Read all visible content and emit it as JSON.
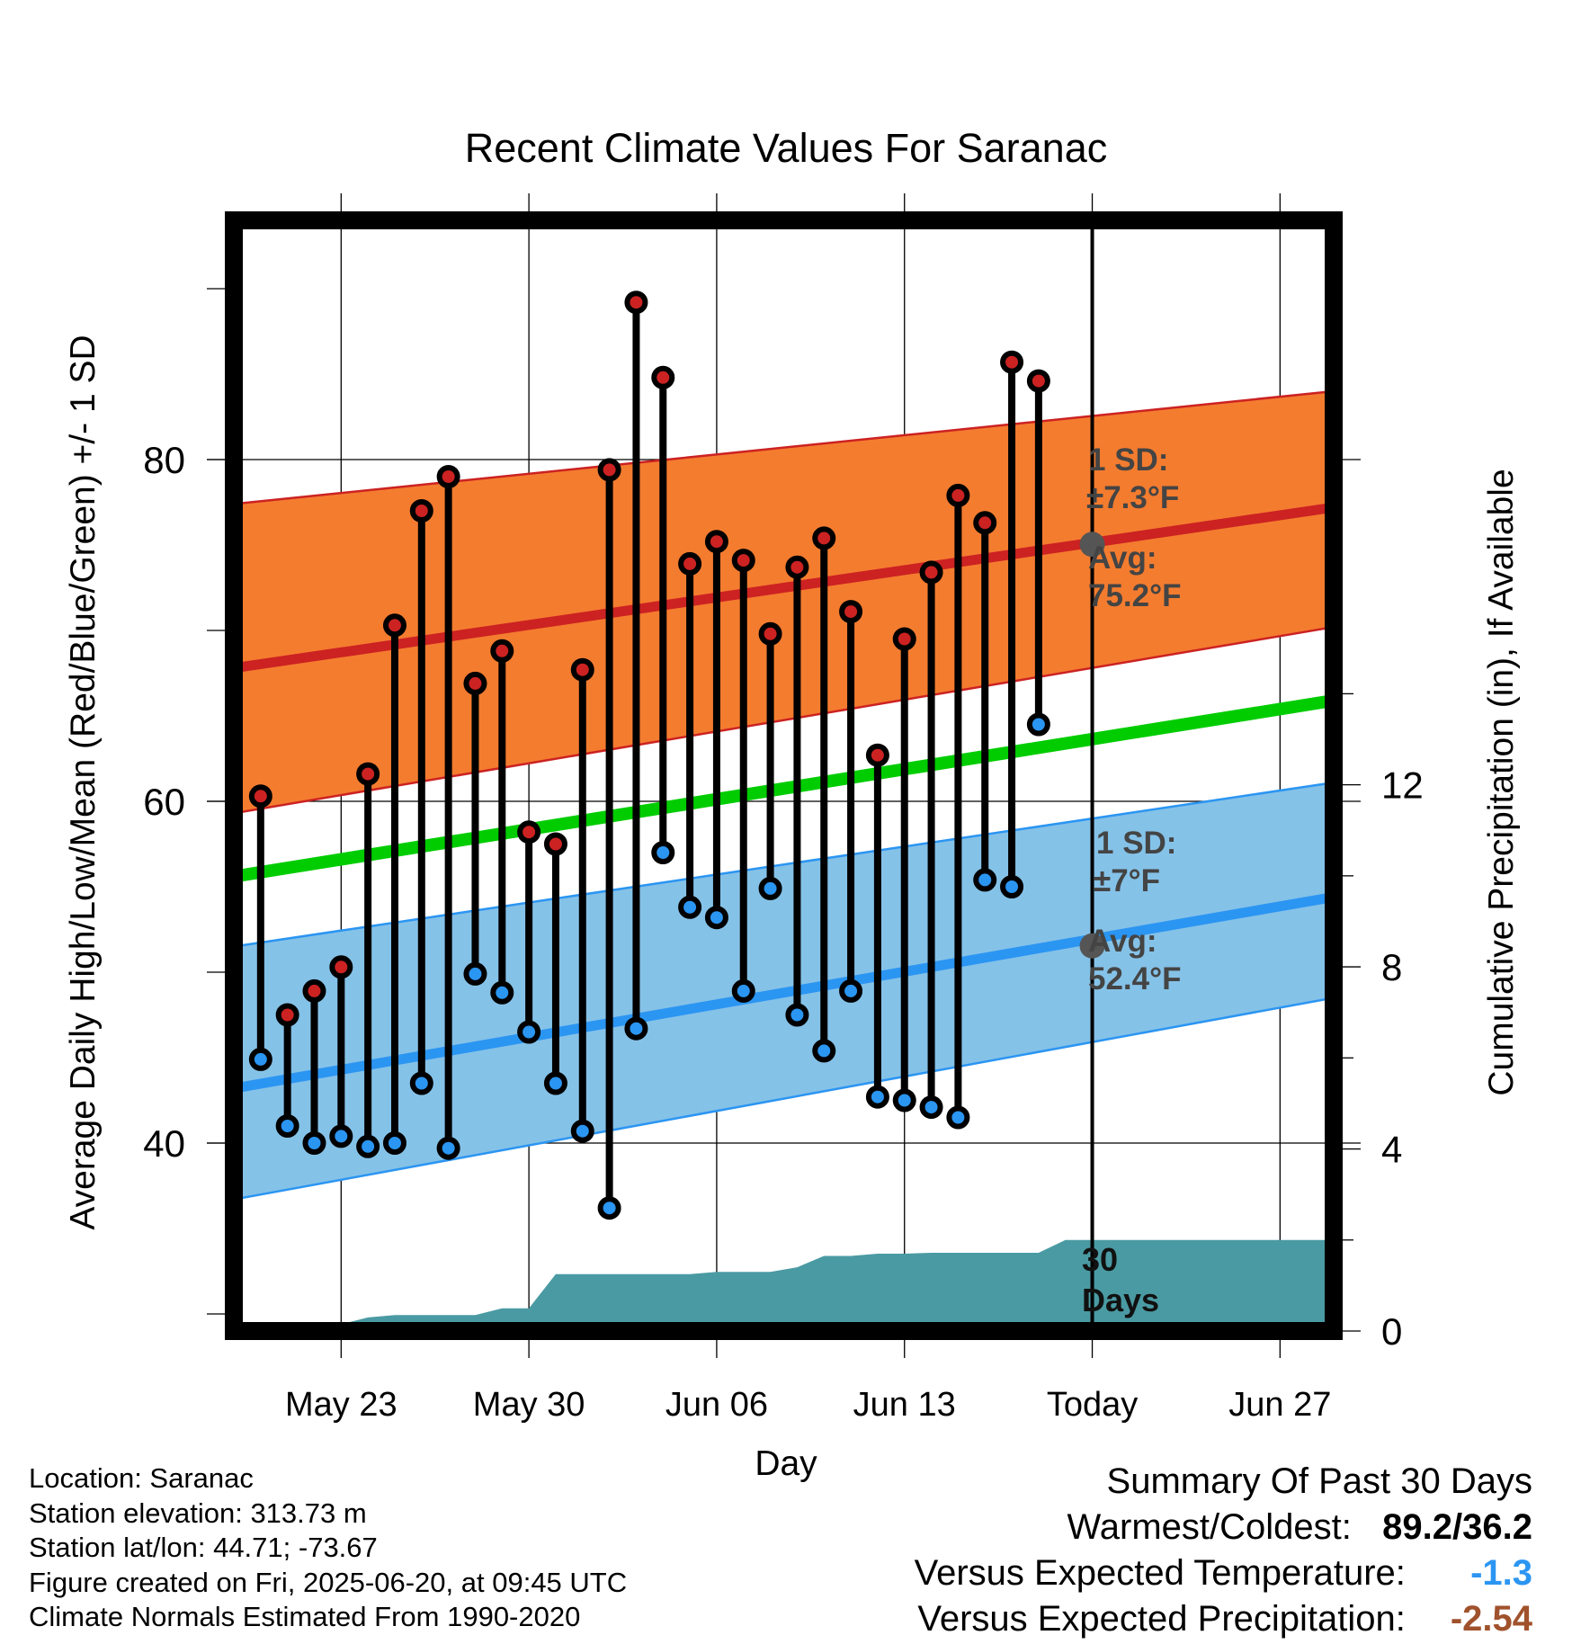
{
  "chart_data": {
    "type": "line",
    "title": "Recent Climate Values For Saranac",
    "xlabel": "Day",
    "ylabel": "Average Daily High/Low/Mean (Red/Blue/Green) +/- 1 SD",
    "y2label": "Cumulative Precipitation (in), If Available",
    "xticks": [
      "May 23",
      "May 30",
      "Jun 06",
      "Jun 13",
      "Today",
      "Jun 27"
    ],
    "yticks": [
      40,
      60,
      80
    ],
    "y2ticks": [
      0,
      4,
      8,
      12
    ],
    "ylim": [
      29,
      94
    ],
    "y2lim": [
      0,
      24.4
    ],
    "xlim": [
      "2025-05-19",
      "2025-06-29"
    ],
    "today": "2025-06-20",
    "observed_dates": [
      "2025-05-20",
      "2025-05-21",
      "2025-05-22",
      "2025-05-23",
      "2025-05-24",
      "2025-05-25",
      "2025-05-26",
      "2025-05-27",
      "2025-05-28",
      "2025-05-29",
      "2025-05-30",
      "2025-05-31",
      "2025-06-01",
      "2025-06-02",
      "2025-06-03",
      "2025-06-04",
      "2025-06-05",
      "2025-06-06",
      "2025-06-07",
      "2025-06-08",
      "2025-06-09",
      "2025-06-10",
      "2025-06-11",
      "2025-06-12",
      "2025-06-13",
      "2025-06-14",
      "2025-06-15",
      "2025-06-16",
      "2025-06-17",
      "2025-06-18",
      "2025-06-19"
    ],
    "series": [
      {
        "name": "Daily High",
        "color": "#cc2222",
        "values": [
          60.3,
          47.5,
          48.9,
          50.3,
          61.6,
          70.3,
          77.0,
          79.0,
          66.9,
          68.8,
          58.2,
          57.5,
          67.7,
          79.4,
          89.2,
          84.8,
          73.9,
          75.2,
          74.1,
          69.8,
          73.7,
          75.4,
          71.1,
          62.7,
          69.5,
          73.4,
          77.9,
          76.3,
          85.7,
          84.6
        ]
      },
      {
        "name": "Daily Low",
        "color": "#2b95f2",
        "values": [
          44.9,
          41.0,
          40.0,
          40.4,
          39.8,
          40.0,
          43.5,
          39.7,
          49.9,
          48.8,
          46.5,
          43.5,
          40.7,
          36.2,
          46.7,
          57.0,
          53.8,
          53.2,
          48.9,
          54.9,
          47.5,
          45.4,
          48.9,
          42.7,
          42.5,
          42.1,
          41.5,
          55.4,
          55.0,
          64.5
        ]
      }
    ],
    "normals": {
      "high_avg_range": [
        67.8,
        77.2
      ],
      "high_upper_range": [
        77.4,
        84.0
      ],
      "high_lower_range": [
        59.3,
        70.2
      ],
      "mean_range": [
        55.6,
        65.9
      ],
      "low_avg_range": [
        43.2,
        54.4
      ],
      "low_upper_range": [
        51.5,
        61.1
      ],
      "low_lower_range": [
        36.7,
        48.5
      ]
    },
    "precipitation": {
      "dates": [
        "2025-05-22",
        "2025-05-23",
        "2025-05-24",
        "2025-05-25",
        "2025-05-26",
        "2025-05-27",
        "2025-05-28",
        "2025-05-29",
        "2025-05-30",
        "2025-05-31",
        "2025-06-01",
        "2025-06-02",
        "2025-06-03",
        "2025-06-04",
        "2025-06-05",
        "2025-06-06",
        "2025-06-07",
        "2025-06-08",
        "2025-06-09",
        "2025-06-10",
        "2025-06-11",
        "2025-06-12",
        "2025-06-13",
        "2025-06-14",
        "2025-06-15",
        "2025-06-16",
        "2025-06-17",
        "2025-06-18",
        "2025-06-19",
        "2025-06-29"
      ],
      "cumulative": [
        0.0,
        0.15,
        0.3,
        0.35,
        0.35,
        0.35,
        0.35,
        0.5,
        0.5,
        1.25,
        1.25,
        1.25,
        1.25,
        1.25,
        1.25,
        1.3,
        1.3,
        1.3,
        1.4,
        1.65,
        1.65,
        1.7,
        1.7,
        1.72,
        1.72,
        1.72,
        1.72,
        1.72,
        2.0,
        2.0
      ],
      "color": "#4a9aa3"
    },
    "annotations": {
      "high_sd_label": "1 SD:",
      "high_sd_value": "±7.3°F",
      "high_avg_label": "Avg:",
      "high_avg_value": "75.2°F",
      "low_sd_label": "1 SD:",
      "low_sd_value": "±7°F",
      "low_avg_label": "Avg:",
      "low_avg_value": "52.4°F",
      "days_line1": "30",
      "days_line2": "Days"
    },
    "grid": true
  },
  "footer": {
    "location": "Location: Saranac",
    "elevation": "Station elevation: 313.73 m",
    "latlon": "Station lat/lon: 44.71; -73.67",
    "created": "Figure created on Fri, 2025-06-20, at 09:45 UTC",
    "normals": "Climate Normals Estimated From 1990-2020"
  },
  "summary": {
    "title": "Summary Of Past 30 Days",
    "warmest_label": "Warmest/Coldest:",
    "warmest_value": "89.2/36.2",
    "temp_label": "Versus Expected Temperature:",
    "temp_value": "-1.3",
    "temp_color": "#2b95f2",
    "precip_label": "Versus Expected Precipitation:",
    "precip_value": "-2.54",
    "precip_color": "#a0522d"
  }
}
